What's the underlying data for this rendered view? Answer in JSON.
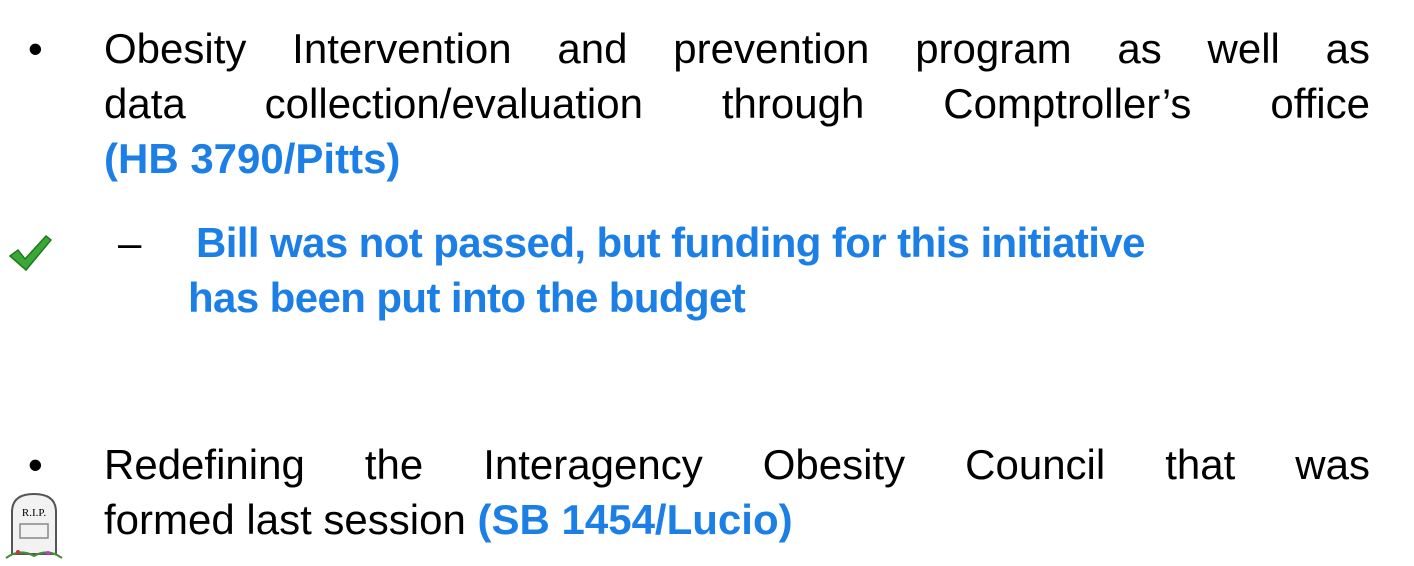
{
  "items": [
    {
      "bullet": "•",
      "lines": [
        "Obesity Intervention and prevention program as well as",
        "data collection/evaluation through Comptroller’s office"
      ],
      "ref": "(HB 3790/Pitts)",
      "sub": {
        "dash": "–",
        "lines": [
          "Bill was not passed, but funding for this initiative",
          "has been put into the budget"
        ]
      }
    },
    {
      "bullet": "•",
      "lines": [
        "Redefining the Interagency Obesity Council that was"
      ],
      "last_line": "formed last session",
      "ref": "(SB 1454/Lucio)",
      "icon_label": "R.I.P."
    }
  ]
}
